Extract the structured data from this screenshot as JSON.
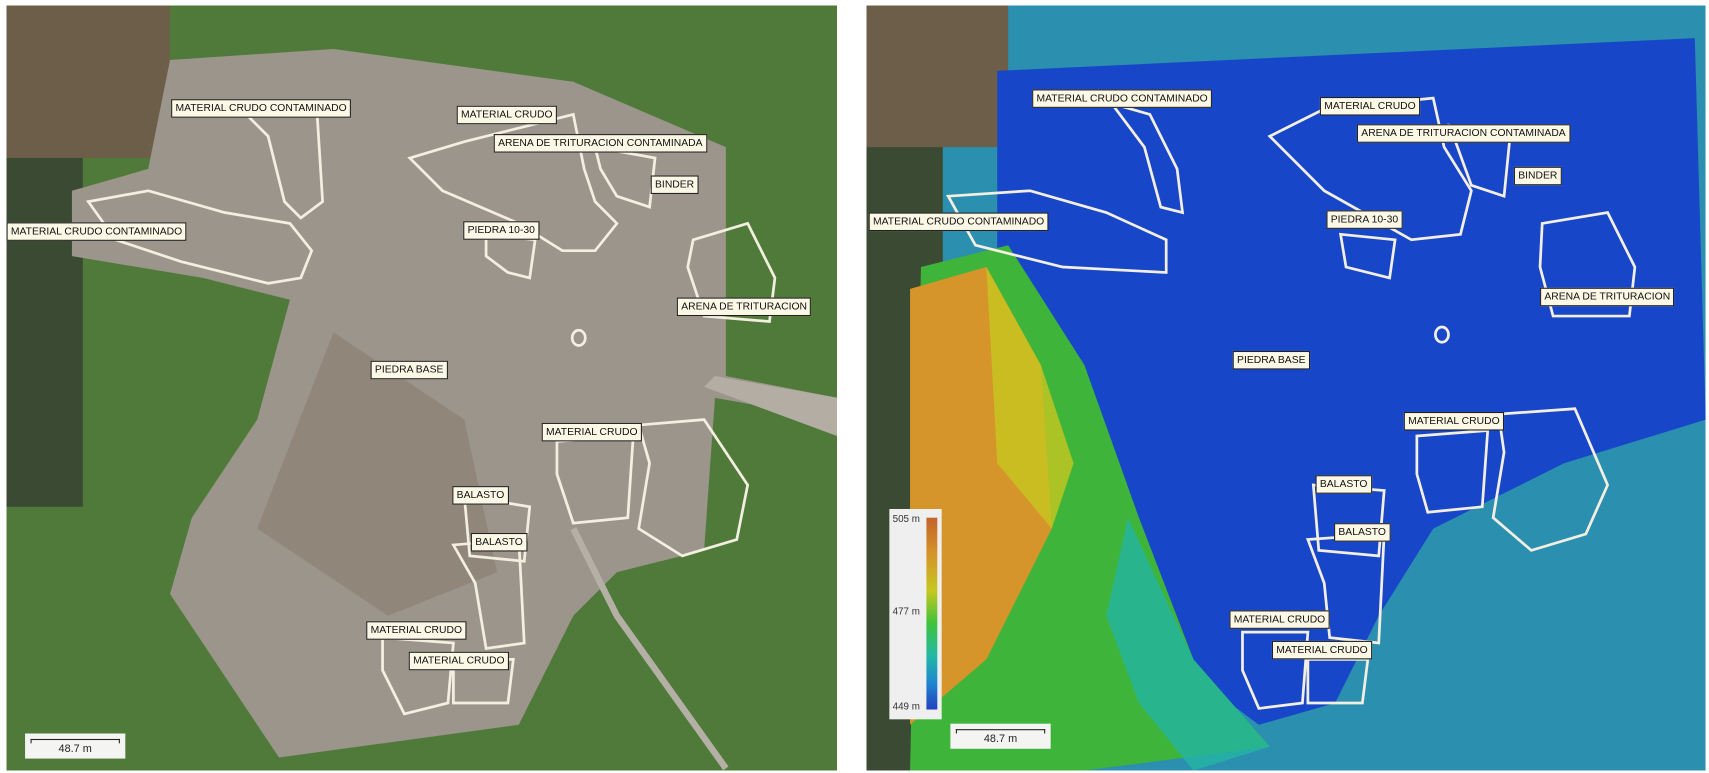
{
  "left_panel": {
    "type": "orthomosaic",
    "labels": [
      "MATERIAL CRUDO CONTAMINADO",
      "MATERIAL CRUDO",
      "ARENA DE TRITURACION CONTAMINADA",
      "BINDER",
      "MATERIAL CRUDO CONTAMINADO",
      "PIEDRA 10-30",
      "ARENA DE TRITURACION",
      "PIEDRA BASE",
      "MATERIAL CRUDO",
      "BALASTO",
      "BALASTO",
      "MATERIAL CRUDO",
      "MATERIAL CRUDO"
    ],
    "scale_bar": "48.7 m"
  },
  "right_panel": {
    "type": "elevation-model",
    "labels": [
      "MATERIAL CRUDO CONTAMINADO",
      "MATERIAL CRUDO",
      "ARENA DE TRITURACION CONTAMINADA",
      "BINDER",
      "MATERIAL CRUDO CONTAMINADO",
      "PIEDRA 10-30",
      "ARENA DE TRITURACION",
      "PIEDRA BASE",
      "MATERIAL CRUDO",
      "BALASTO",
      "BALASTO",
      "MATERIAL CRUDO",
      "MATERIAL CRUDO"
    ],
    "scale_bar": "48.7 m",
    "legend": {
      "max": "505 m",
      "mid": "477 m",
      "min": "449 m",
      "colors": [
        "#c4632b",
        "#c7c720",
        "#3fc33a",
        "#21b9a6",
        "#2242c0"
      ]
    }
  },
  "colors": {
    "label_bg": "#fbf8e6",
    "outline": "#f3efe0",
    "vegetation": "#4f7a3a",
    "quarry": "#9c958c",
    "low_elevation": "#1746c8"
  }
}
